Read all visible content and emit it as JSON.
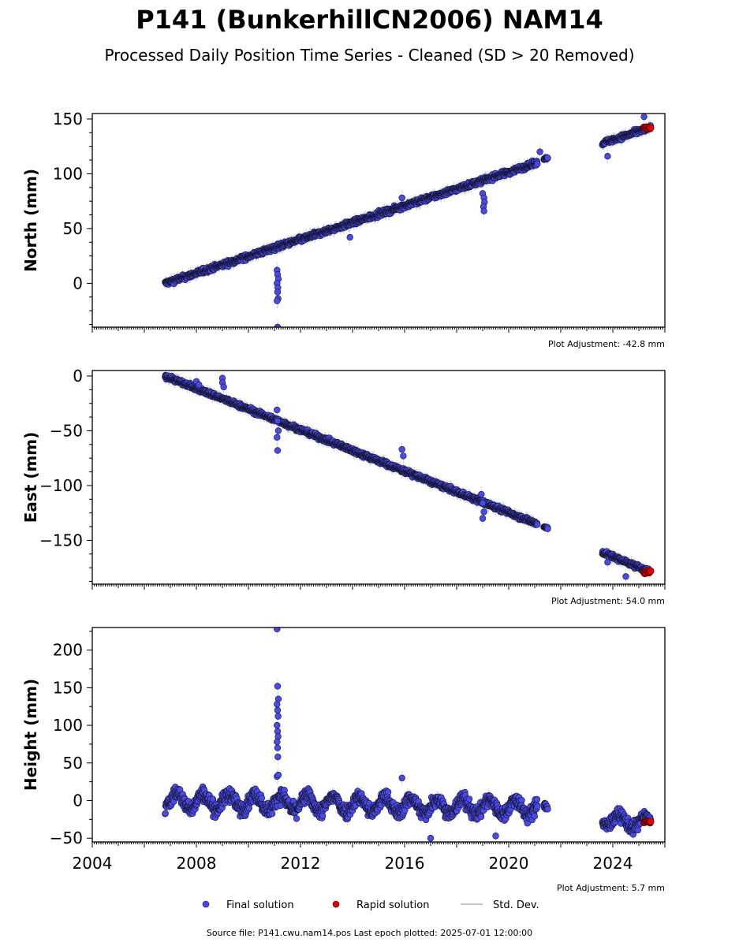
{
  "header": {
    "title": "P141 (BunkerhillCN2006) NAM14",
    "subtitle": "Processed Daily Position Time Series - Cleaned (SD > 20 Removed)"
  },
  "footer": {
    "source": "Source file: P141.cwu.nam14.pos  Last epoch plotted: 2025-07-01 12:00:00"
  },
  "legend": {
    "final": "Final solution",
    "rapid": "Rapid solution",
    "stddev": "Std. Dev."
  },
  "colors": {
    "final": "#4a4ae6",
    "rapid": "#e00000",
    "stddev": "#b4b4b4"
  },
  "chart_data": [
    {
      "type": "scatter",
      "ylabel": "North (mm)",
      "adjustment": "Plot Adjustment: -42.8 mm",
      "xlim": [
        2004,
        2026
      ],
      "ylim": [
        -40,
        155
      ],
      "yticks": [
        0,
        50,
        100,
        150
      ],
      "segments": [
        {
          "start": 2006.8,
          "end": 2021.1,
          "y0": 0,
          "y1": 110,
          "noise": 2.2
        },
        {
          "start": 2021.35,
          "end": 2021.5,
          "y0": 114,
          "y1": 114,
          "noise": 1.0
        },
        {
          "start": 2023.6,
          "end": 2025.45,
          "y0": 128,
          "y1": 142,
          "noise": 2.0
        }
      ],
      "outliers": [
        [
          2011.1,
          12
        ],
        [
          2011.12,
          8
        ],
        [
          2011.15,
          4
        ],
        [
          2011.1,
          0
        ],
        [
          2011.13,
          -4
        ],
        [
          2011.12,
          -8
        ],
        [
          2011.14,
          -14
        ],
        [
          2011.1,
          -16
        ],
        [
          2011.12,
          -40
        ],
        [
          2019.0,
          82
        ],
        [
          2019.05,
          78
        ],
        [
          2019.07,
          74
        ],
        [
          2019.03,
          70
        ],
        [
          2019.05,
          66
        ],
        [
          2013.9,
          42
        ],
        [
          2015.9,
          78
        ],
        [
          2021.2,
          120
        ],
        [
          2023.8,
          116
        ],
        [
          2025.2,
          152
        ]
      ],
      "rapid": {
        "start": 2025.2,
        "end": 2025.45,
        "y": 142
      }
    },
    {
      "type": "scatter",
      "ylabel": "East (mm)",
      "adjustment": "Plot Adjustment: 54.0 mm",
      "xlim": [
        2004,
        2026
      ],
      "ylim": [
        -190,
        5
      ],
      "yticks": [
        0,
        -50,
        -100,
        -150
      ],
      "segments": [
        {
          "start": 2006.8,
          "end": 2021.1,
          "y0": 0,
          "y1": -135,
          "noise": 2.0
        },
        {
          "start": 2021.35,
          "end": 2021.5,
          "y0": -138,
          "y1": -139,
          "noise": 1.0
        },
        {
          "start": 2023.6,
          "end": 2025.45,
          "y0": -161,
          "y1": -179,
          "noise": 2.0
        }
      ],
      "outliers": [
        [
          2008.0,
          -5
        ],
        [
          2008.1,
          -8
        ],
        [
          2009.0,
          -2
        ],
        [
          2009.0,
          -6
        ],
        [
          2009.05,
          -10
        ],
        [
          2011.1,
          -31
        ],
        [
          2011.12,
          -41
        ],
        [
          2011.15,
          -50
        ],
        [
          2011.1,
          -56
        ],
        [
          2011.12,
          -68
        ],
        [
          2015.9,
          -67
        ],
        [
          2015.95,
          -73
        ],
        [
          2018.95,
          -108
        ],
        [
          2019.0,
          -116
        ],
        [
          2019.05,
          -124
        ],
        [
          2019.0,
          -130
        ],
        [
          2023.8,
          -170
        ],
        [
          2024.5,
          -183
        ]
      ],
      "rapid": {
        "start": 2025.2,
        "end": 2025.45,
        "y": -179
      }
    },
    {
      "type": "scatter",
      "ylabel": "Height (mm)",
      "adjustment": "Plot Adjustment: 5.7 mm",
      "xlim": [
        2004,
        2026
      ],
      "ylim": [
        -55,
        230
      ],
      "yticks": [
        -50,
        0,
        50,
        100,
        150,
        200
      ],
      "xticks": [
        2004,
        2008,
        2012,
        2016,
        2020,
        2024
      ],
      "segments": [
        {
          "start": 2006.8,
          "end": 2021.1,
          "y0": 0,
          "y1": -10,
          "noise": 9.0,
          "seasonal": 10
        },
        {
          "start": 2021.35,
          "end": 2021.5,
          "y0": -5,
          "y1": -10,
          "noise": 4.0
        },
        {
          "start": 2023.6,
          "end": 2025.45,
          "y0": -25,
          "y1": -30,
          "noise": 8.0,
          "seasonal": 8
        }
      ],
      "outliers": [
        [
          2011.1,
          228
        ],
        [
          2011.12,
          152
        ],
        [
          2011.15,
          135
        ],
        [
          2011.1,
          128
        ],
        [
          2011.12,
          120
        ],
        [
          2011.14,
          112
        ],
        [
          2011.1,
          100
        ],
        [
          2011.12,
          92
        ],
        [
          2011.14,
          85
        ],
        [
          2011.1,
          78
        ],
        [
          2011.12,
          70
        ],
        [
          2011.13,
          58
        ],
        [
          2011.1,
          32
        ],
        [
          2011.15,
          34
        ],
        [
          2015.9,
          30
        ],
        [
          2017.0,
          -50
        ],
        [
          2019.5,
          -47
        ]
      ],
      "rapid": {
        "start": 2025.2,
        "end": 2025.45,
        "y": -28
      }
    }
  ]
}
